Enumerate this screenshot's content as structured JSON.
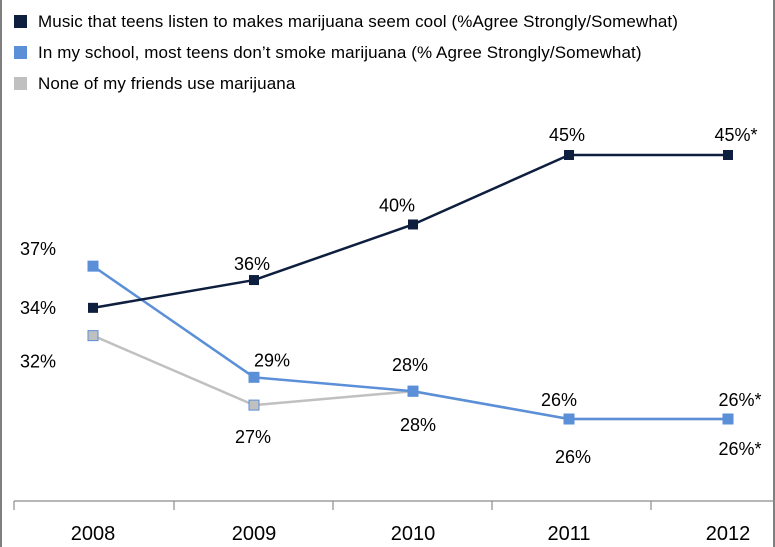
{
  "chart_data": {
    "type": "line",
    "categories": [
      "2008",
      "2009",
      "2010",
      "2011",
      "2012"
    ],
    "series": [
      {
        "name": "Music that teens listen to makes marijuana seem cool (%Agree Strongly/Somewhat)",
        "color": "#0e1e3f",
        "values": [
          34,
          36,
          40,
          45,
          45
        ],
        "labels": [
          "34%",
          "36%",
          "40%",
          "45%",
          "45%*"
        ]
      },
      {
        "name": "In my school, most teens don’t smoke marijuana (% Agree Strongly/Somewhat)",
        "color": "#5b8fd8",
        "values": [
          37,
          29,
          28,
          26,
          26
        ],
        "labels": [
          "37%",
          "29%",
          "28%",
          "26%",
          "26%*"
        ]
      },
      {
        "name": "None of my friends use marijuana",
        "color": "#c0c0c0",
        "values": [
          32,
          27,
          28,
          26,
          26
        ],
        "labels": [
          "32%",
          "27%",
          "28%",
          "26%",
          "26%*"
        ]
      }
    ],
    "xlabel": "",
    "ylabel": "",
    "legend_position": "top-left",
    "grid": false
  }
}
